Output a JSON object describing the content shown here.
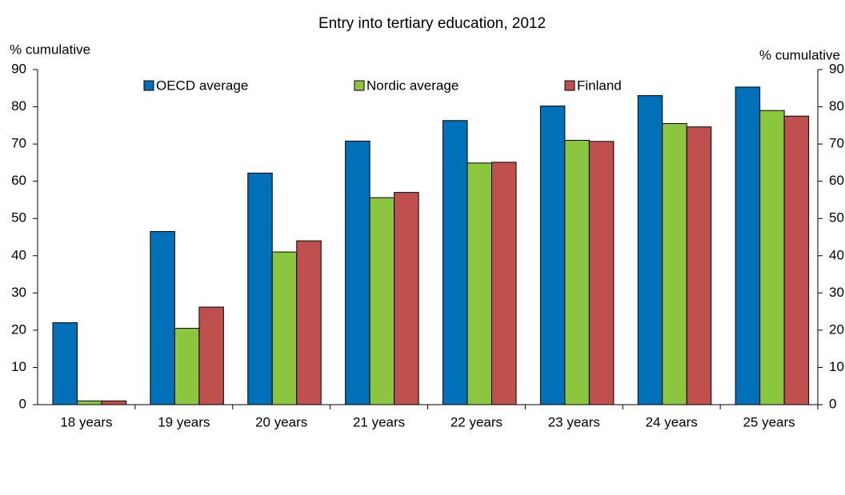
{
  "chart_data": {
    "type": "bar",
    "title": "Entry into tertiary education, 2012",
    "ylabel": "% cumulative",
    "y2label": "% cumulative",
    "categories": [
      "18 years",
      "19 years",
      "20 years",
      "21 years",
      "22 years",
      "23 years",
      "24 years",
      "25 years"
    ],
    "series": [
      {
        "name": "OECD average",
        "color": "#0070b8",
        "values": [
          22,
          46.5,
          62.2,
          70.8,
          76.3,
          80.2,
          83,
          85.3
        ]
      },
      {
        "name": "Nordic average",
        "color": "#8cc63f",
        "values": [
          1,
          20.5,
          41,
          55.6,
          64.9,
          71,
          75.5,
          79
        ]
      },
      {
        "name": "Finland",
        "color": "#c0504d",
        "values": [
          1,
          26.2,
          44,
          57,
          65.1,
          70.7,
          74.6,
          77.5
        ]
      }
    ],
    "ylim": [
      0,
      90
    ],
    "yticks": [
      0,
      10,
      20,
      30,
      40,
      50,
      60,
      70,
      80,
      90
    ],
    "y2lim": [
      0,
      90
    ],
    "y2ticks": [
      0,
      10,
      20,
      30,
      40,
      50,
      60,
      70,
      80,
      90
    ],
    "grid": false
  }
}
